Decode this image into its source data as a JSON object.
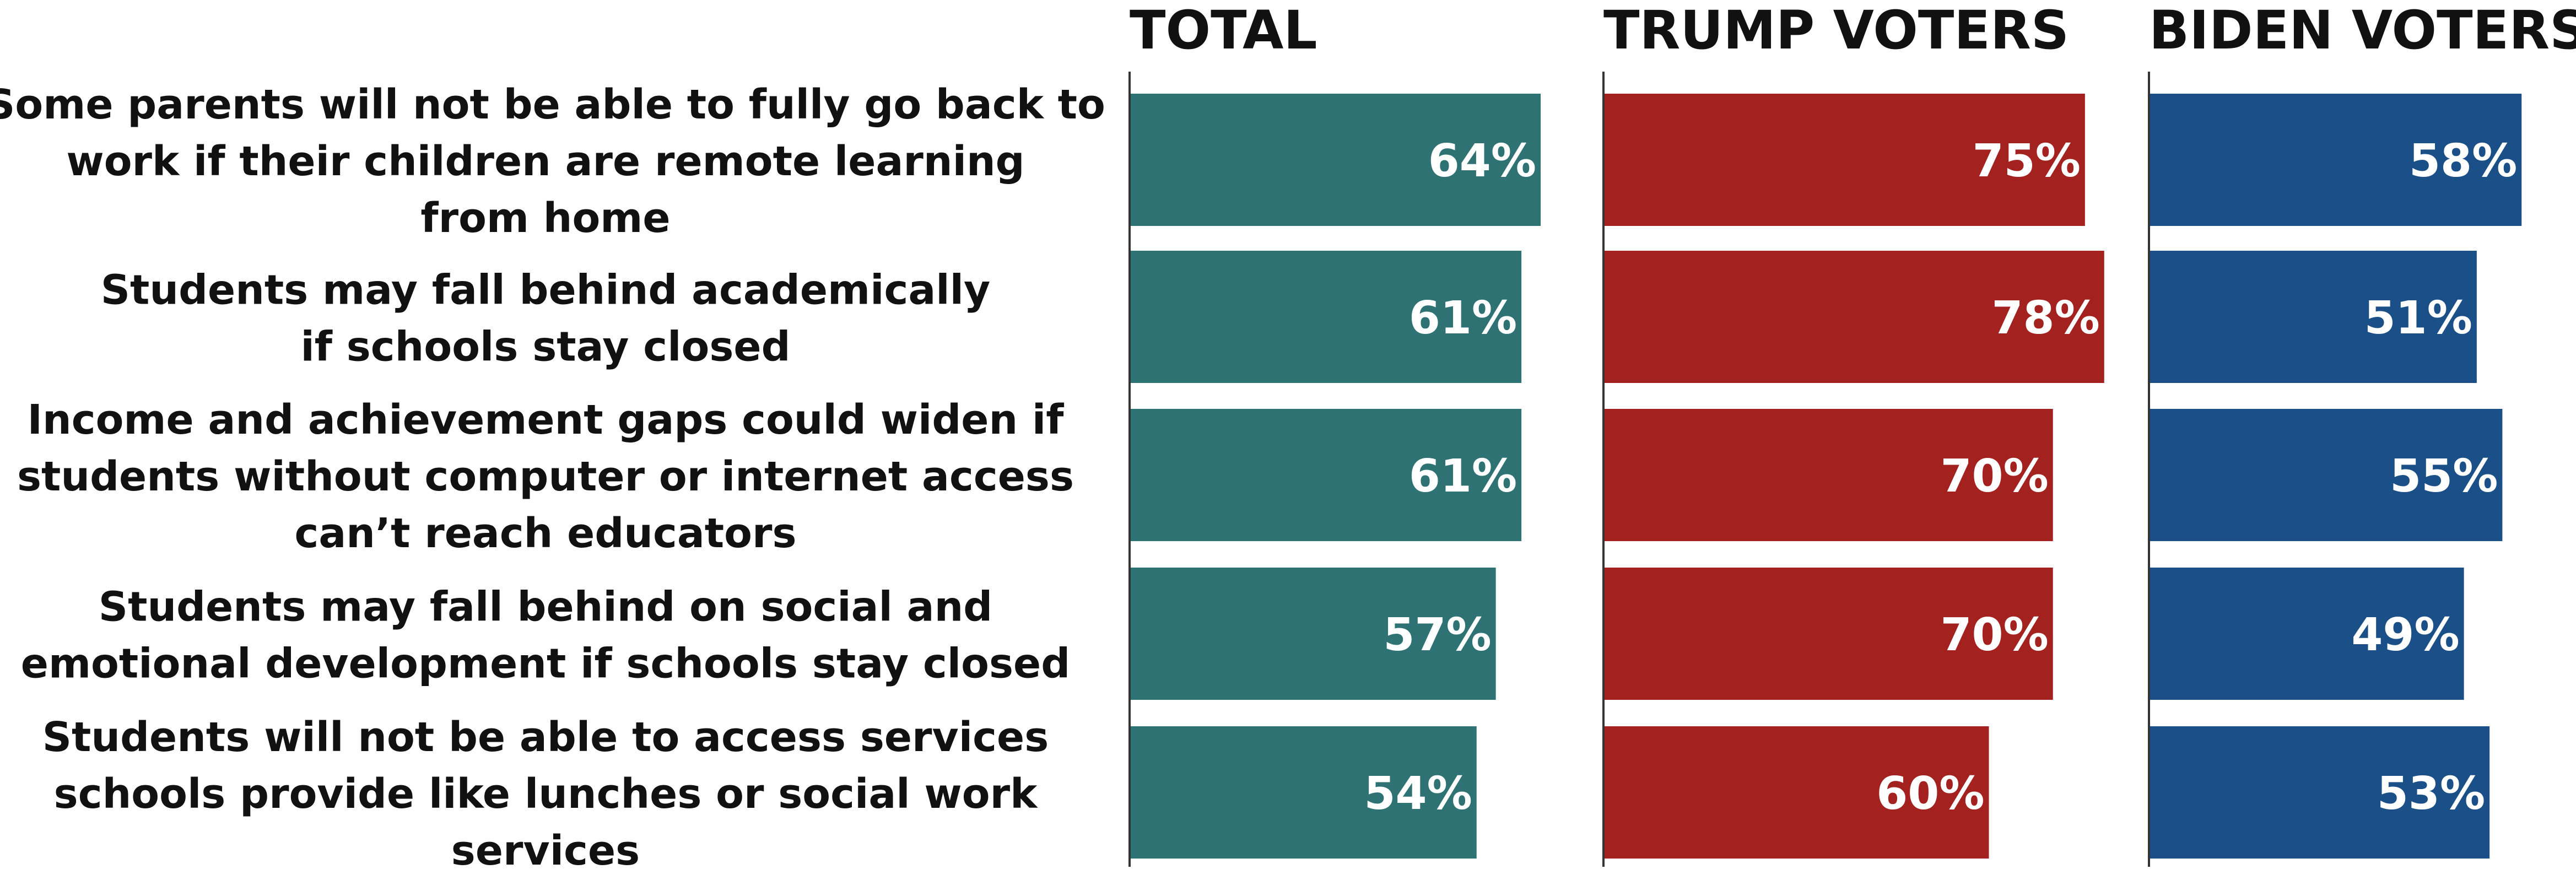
{
  "chart_data": {
    "type": "bar",
    "orientation": "horizontal",
    "categories": [
      [
        "Some parents will not be able to fully go back to",
        "work if their children are remote learning",
        "from home"
      ],
      [
        "Students may fall behind academically",
        "if schools stay closed"
      ],
      [
        "Income and achievement gaps could widen if",
        "students without computer or internet access",
        "can’t reach educators"
      ],
      [
        "Students may fall behind on social and",
        "emotional development if schools stay closed"
      ],
      [
        "Students will not be able to access services",
        "schools provide like lunches or social work",
        "services"
      ]
    ],
    "series": [
      {
        "name": "TOTAL",
        "color": "#2e7274",
        "values": [
          64,
          61,
          61,
          57,
          54
        ]
      },
      {
        "name": "TRUMP VOTERS",
        "color": "#a32220",
        "values": [
          75,
          78,
          70,
          70,
          60
        ]
      },
      {
        "name": "BIDEN VOTERS",
        "color": "#1a4f88",
        "values": [
          58,
          51,
          55,
          49,
          53
        ]
      }
    ],
    "value_suffix": "%",
    "label_color": "#ffffff",
    "grid": false,
    "legend": "none"
  }
}
